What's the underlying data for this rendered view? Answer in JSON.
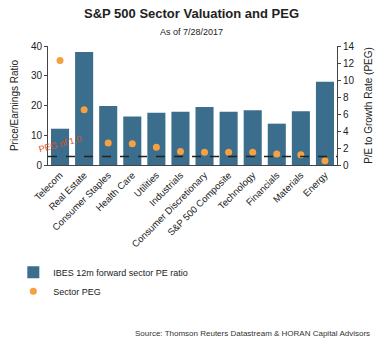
{
  "chart_data": {
    "type": "bar",
    "title": "S&P 500 Sector Valuation and PEG",
    "subtitle": "As of 7/28/2017",
    "categories": [
      "Telecom",
      "Real Estate",
      "Consumer Staples",
      "Health Care",
      "Utilities",
      "Industrials",
      "Consumer Discretionary",
      "S&P 500 Composite",
      "Technology",
      "Financials",
      "Materials",
      "Energy"
    ],
    "series": [
      {
        "name": "IBES 12m forward sector PE ratio",
        "type": "bar",
        "color": "#3b6d8c",
        "values": [
          12.2,
          38,
          19.8,
          16.3,
          17.6,
          17.9,
          19.5,
          17.9,
          18.4,
          13.9,
          18.1,
          28
        ]
      },
      {
        "name": "Sector PEG",
        "type": "scatter",
        "axis": "y2",
        "color": "#f5a142",
        "marker": "circle",
        "values": [
          12.3,
          6.5,
          2.6,
          2.5,
          2.1,
          1.6,
          1.5,
          1.5,
          1.5,
          1.3,
          1.2,
          0.5
        ]
      }
    ],
    "ylabel": "Price/Earnings Ratio",
    "y2label": "P/E to Growth Rate (PEG)",
    "ylim": [
      0,
      40
    ],
    "yticks": [
      0,
      10,
      20,
      30,
      40
    ],
    "y2lim": [
      0,
      14
    ],
    "y2ticks": [
      0,
      2,
      4,
      6,
      8,
      10,
      12,
      14
    ],
    "reference_line": {
      "value": 1,
      "axis": "y2",
      "label": "PEG of 1.0",
      "line_style": "dash"
    },
    "source": "Source: Thomson Reuters Datastream & HORAN Capital Advisors",
    "legend": "bottom",
    "grid": false
  }
}
